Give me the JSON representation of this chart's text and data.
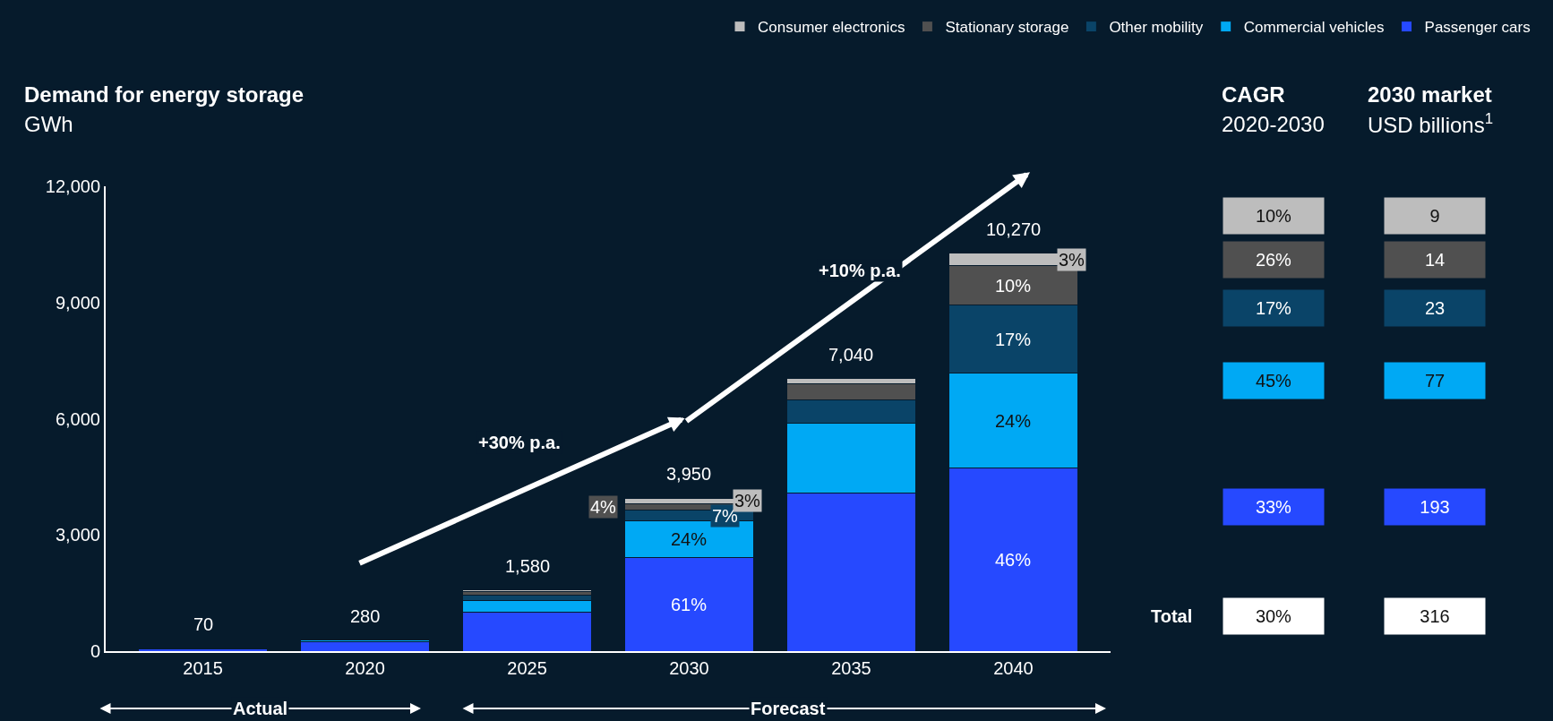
{
  "chart_data": {
    "type": "bar",
    "stacked": true,
    "title": "Demand for energy storage",
    "subtitle": "GWh",
    "categories": [
      "2015",
      "2020",
      "2025",
      "2030",
      "2035",
      "2040"
    ],
    "series": [
      {
        "name": "Passenger cars",
        "color": "#2649ff",
        "values": [
          50,
          240,
          1000,
          2410,
          4090,
          4720
        ]
      },
      {
        "name": "Commercial vehicles",
        "color": "#00a9f4",
        "values": [
          10,
          40,
          300,
          950,
          1800,
          2460
        ]
      },
      {
        "name": "Other mobility",
        "color": "#0a4468",
        "values": [
          10,
          null,
          140,
          280,
          590,
          1750
        ]
      },
      {
        "name": "Stationary storage",
        "color": "#505050",
        "values": [
          0,
          null,
          90,
          160,
          430,
          1030
        ]
      },
      {
        "name": "Consumer electronics",
        "color": "#bdbdbd",
        "values": [
          0,
          null,
          50,
          150,
          130,
          310
        ]
      }
    ],
    "totals": [
      "70",
      "280",
      "1,580",
      "3,950",
      "7,040",
      "10,270"
    ],
    "ylim": [
      0,
      12000
    ],
    "yticks": [
      0,
      {
        "value": 3000,
        "label": "3,000"
      },
      {
        "value": 6000,
        "label": "6,000"
      },
      {
        "value": 9000,
        "label": "9,000"
      },
      {
        "value": 12000,
        "label": "12,000"
      }
    ],
    "grid": false,
    "legend": "top right",
    "annotations": [
      "+30% p.a.",
      "+10% p.a.",
      "Actual",
      "Forecast",
      "CAGR",
      "2020-2030",
      "2030 market",
      "USD billions$^{1}$",
      "Total",
      "10%",
      "26%",
      "17%",
      "45%",
      "33%",
      "30%",
      "9",
      "14",
      "23",
      "77",
      "193",
      "316",
      "61%",
      "24%",
      "7%",
      "4%",
      "3%",
      "46%",
      "24%",
      "17%",
      "10%",
      "3%"
    ]
  }
}
